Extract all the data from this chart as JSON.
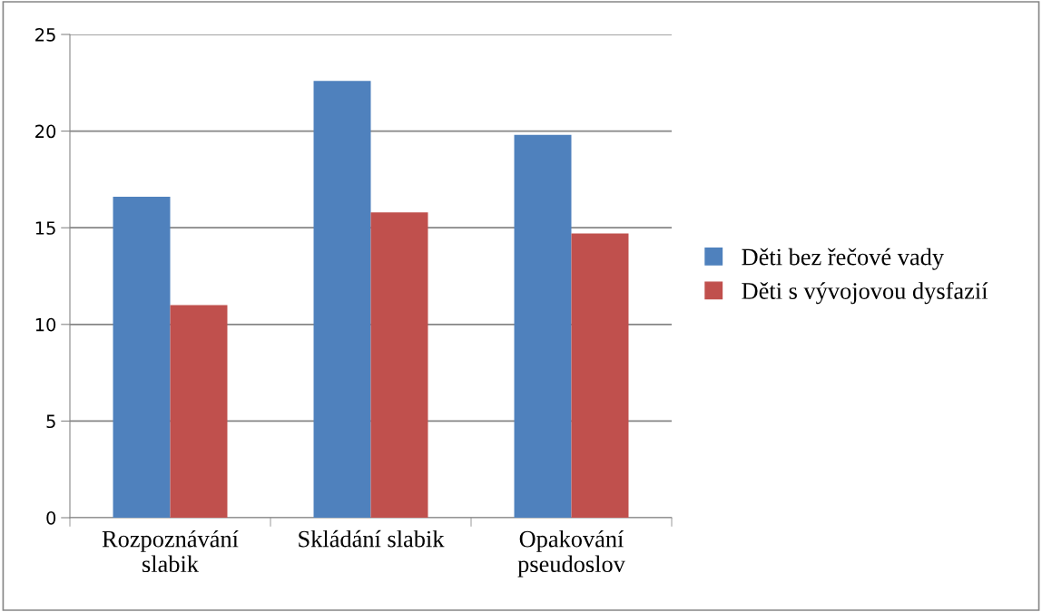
{
  "chart_data": {
    "type": "bar",
    "categories": [
      "Rozpoznávání\nslabik",
      "Skládání slabik",
      "Opakování\npseudoslov"
    ],
    "series": [
      {
        "name": "Děti bez řečové vady",
        "color": "#4f81bd",
        "values": [
          16.6,
          22.6,
          19.8
        ]
      },
      {
        "name": "Děti s vývojovou dysfazií",
        "color": "#c0504d",
        "values": [
          11.0,
          15.8,
          14.7
        ]
      }
    ],
    "ylim": [
      0,
      25
    ],
    "yticks": [
      0,
      5,
      10,
      15,
      20,
      25
    ],
    "grid": "y",
    "legend": "right"
  }
}
